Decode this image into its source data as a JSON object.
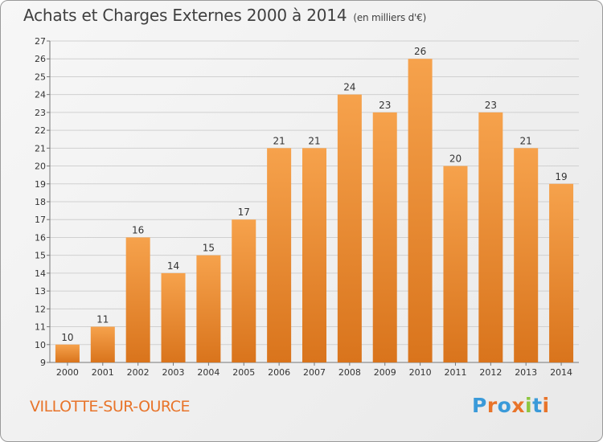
{
  "header": {
    "title": "Achats et Charges Externes 2000 à 2014",
    "subtitle": "(en milliers d'€)"
  },
  "footer": {
    "commune": "VILLOTTE-SUR-OURCE",
    "logo_text": "Proxiti",
    "logo_colors": [
      "#3a9ad9",
      "#e8742a",
      "#3a9ad9",
      "#e8742a",
      "#8dc63f",
      "#3a9ad9",
      "#e8742a"
    ]
  },
  "colors": {
    "bar_light": "#f6a24c",
    "bar_dark": "#d9741c",
    "grid": "#d0d0d0",
    "text": "#333333"
  },
  "chart_data": {
    "type": "bar",
    "categories": [
      "2000",
      "2001",
      "2002",
      "2003",
      "2004",
      "2005",
      "2006",
      "2007",
      "2008",
      "2009",
      "2010",
      "2011",
      "2012",
      "2013",
      "2014"
    ],
    "values": [
      10,
      11,
      16,
      14,
      15,
      17,
      21,
      21,
      24,
      23,
      26,
      20,
      23,
      21,
      19
    ],
    "data_labels": [
      "10",
      "11",
      "16",
      "14",
      "15",
      "17",
      "21",
      "21",
      "24",
      "23",
      "26",
      "20",
      "23",
      "21",
      "19"
    ],
    "ylim": [
      9,
      27
    ],
    "yticks": [
      "9",
      "10",
      "11",
      "12",
      "13",
      "14",
      "15",
      "16",
      "17",
      "18",
      "19",
      "20",
      "21",
      "22",
      "23",
      "24",
      "25",
      "26",
      "27"
    ],
    "grid": true,
    "xlabel": "",
    "ylabel": ""
  }
}
